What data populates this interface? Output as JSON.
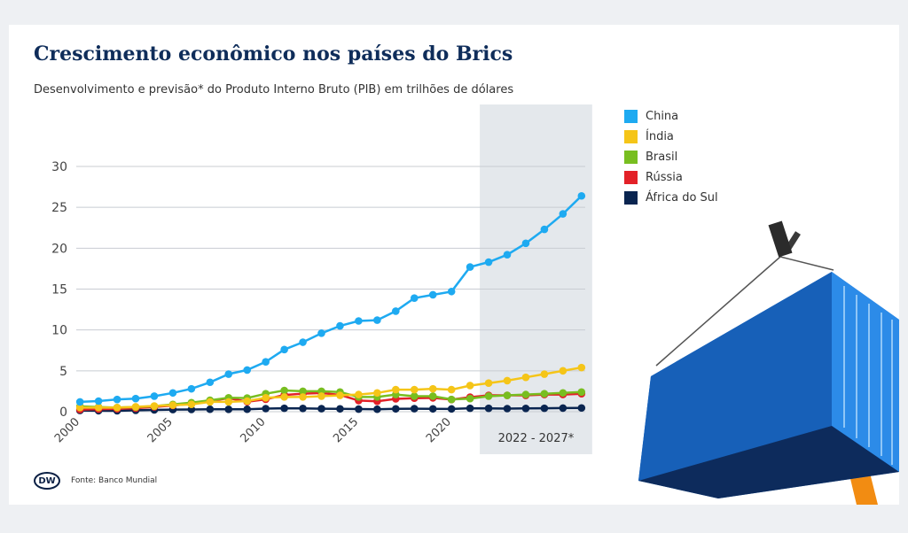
{
  "title": "Crescimento econômico nos países do Brics",
  "subtitle": "Desenvolvimento e previsão* do Produto Interno Bruto (PIB) em trilhões de dólares",
  "forecast_label": "2022 - 2027*",
  "source": "Fonte: Banco Mundial",
  "logo_text": "DW",
  "chart_data": {
    "type": "line",
    "title": "Crescimento econômico nos países do Brics",
    "subtitle": "Desenvolvimento e previsão* do Produto Interno Bruto (PIB) em trilhões de dólares",
    "x": [
      2000,
      2001,
      2002,
      2003,
      2004,
      2005,
      2006,
      2007,
      2008,
      2009,
      2010,
      2011,
      2012,
      2013,
      2014,
      2015,
      2016,
      2017,
      2018,
      2019,
      2020,
      2021,
      2022,
      2023,
      2024,
      2025,
      2026,
      2027
    ],
    "x_ticks": [
      2000,
      2005,
      2010,
      2015,
      2020
    ],
    "y_ticks": [
      0,
      5,
      10,
      15,
      20,
      25,
      30
    ],
    "ylim": [
      0,
      30
    ],
    "grid": true,
    "legend_position": "right",
    "forecast_range": [
      2022,
      2027
    ],
    "series": [
      {
        "name": "China",
        "color": "#1eaaf1",
        "values": [
          1.2,
          1.3,
          1.5,
          1.6,
          1.9,
          2.3,
          2.8,
          3.6,
          4.6,
          5.1,
          6.1,
          7.6,
          8.5,
          9.6,
          10.5,
          11.1,
          11.2,
          12.3,
          13.9,
          14.3,
          14.7,
          17.7,
          18.3,
          19.2,
          20.6,
          22.3,
          24.2,
          26.4
        ]
      },
      {
        "name": "Índia",
        "color": "#f5c518",
        "values": [
          0.5,
          0.5,
          0.5,
          0.6,
          0.7,
          0.8,
          0.9,
          1.2,
          1.2,
          1.3,
          1.7,
          1.8,
          1.8,
          1.9,
          2.0,
          2.1,
          2.3,
          2.7,
          2.7,
          2.8,
          2.7,
          3.2,
          3.5,
          3.8,
          4.2,
          4.6,
          5.0,
          5.4
        ]
      },
      {
        "name": "Brasil",
        "color": "#78be20",
        "values": [
          0.65,
          0.56,
          0.51,
          0.56,
          0.67,
          0.89,
          1.11,
          1.4,
          1.7,
          1.67,
          2.2,
          2.6,
          2.5,
          2.5,
          2.4,
          1.8,
          1.8,
          2.1,
          1.9,
          1.9,
          1.5,
          1.6,
          1.9,
          2.0,
          2.1,
          2.2,
          2.3,
          2.4
        ]
      },
      {
        "name": "Rússia",
        "color": "#e32128",
        "values": [
          0.26,
          0.31,
          0.35,
          0.43,
          0.59,
          0.76,
          0.99,
          1.3,
          1.66,
          1.22,
          1.52,
          2.05,
          2.21,
          2.29,
          2.06,
          1.36,
          1.28,
          1.57,
          1.66,
          1.69,
          1.48,
          1.78,
          2.0,
          2.0,
          2.0,
          2.1,
          2.1,
          2.2
        ]
      },
      {
        "name": "África do Sul",
        "color": "#0a2550",
        "values": [
          0.15,
          0.12,
          0.11,
          0.17,
          0.22,
          0.26,
          0.27,
          0.3,
          0.29,
          0.3,
          0.38,
          0.42,
          0.4,
          0.37,
          0.35,
          0.32,
          0.3,
          0.35,
          0.37,
          0.35,
          0.34,
          0.42,
          0.41,
          0.38,
          0.4,
          0.42,
          0.44,
          0.46
        ]
      }
    ]
  }
}
